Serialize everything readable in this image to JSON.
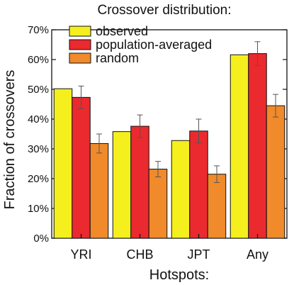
{
  "chart_data": {
    "type": "bar",
    "title": "Crossover distribution:",
    "xlabel": "Hotspots:",
    "ylabel": "Fraction of crossovers",
    "ylim": [
      0,
      70
    ],
    "y_unit": "%",
    "yticks": [
      0,
      10,
      20,
      30,
      40,
      50,
      60,
      70
    ],
    "categories": [
      "YRI",
      "CHB",
      "JPT",
      "Any"
    ],
    "series": [
      {
        "name": "observed",
        "color": "#f5ef1e",
        "values": [
          50.2,
          35.8,
          32.8,
          61.6
        ],
        "errors": [
          null,
          null,
          null,
          null
        ]
      },
      {
        "name": "population-averaged",
        "color": "#ea2a2e",
        "values": [
          47.3,
          37.6,
          36.0,
          62.0
        ],
        "errors": [
          3.8,
          3.8,
          4.0,
          4.0
        ]
      },
      {
        "name": "random",
        "color": "#f08a2a",
        "values": [
          31.8,
          23.2,
          21.5,
          44.5
        ],
        "errors": [
          3.2,
          2.6,
          2.8,
          3.8
        ]
      }
    ],
    "legend_position": "top-left",
    "grid": false
  }
}
